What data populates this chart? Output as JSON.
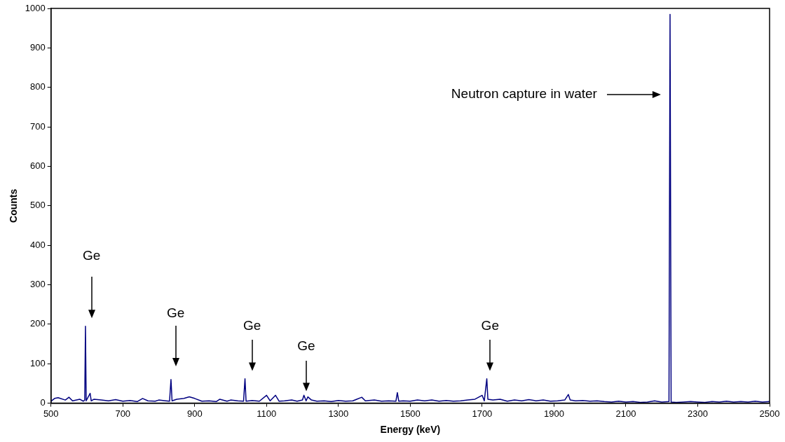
{
  "chart_data": {
    "type": "line",
    "xlabel": "Energy (keV)",
    "ylabel": "Counts",
    "x": [
      500,
      510,
      520,
      540,
      550,
      560,
      580,
      590,
      594,
      596,
      598,
      609,
      612,
      620,
      640,
      660,
      680,
      700,
      720,
      740,
      755,
      770,
      790,
      800,
      820,
      830,
      834,
      837,
      850,
      870,
      885,
      900,
      920,
      940,
      960,
      970,
      990,
      1000,
      1020,
      1036,
      1040,
      1043,
      1060,
      1080,
      1100,
      1110,
      1125,
      1135,
      1150,
      1170,
      1185,
      1200,
      1204,
      1210,
      1215,
      1225,
      1240,
      1260,
      1280,
      1300,
      1320,
      1340,
      1365,
      1375,
      1400,
      1420,
      1440,
      1460,
      1464,
      1468,
      1480,
      1500,
      1520,
      1540,
      1560,
      1580,
      1600,
      1620,
      1640,
      1660,
      1680,
      1700,
      1706,
      1713,
      1716,
      1730,
      1750,
      1770,
      1790,
      1810,
      1830,
      1850,
      1870,
      1890,
      1910,
      1930,
      1940,
      1945,
      1960,
      1980,
      2000,
      2020,
      2040,
      2060,
      2080,
      2100,
      2120,
      2140,
      2160,
      2180,
      2200,
      2220,
      2223,
      2226,
      2240,
      2260,
      2280,
      2300,
      2320,
      2340,
      2360,
      2380,
      2400,
      2420,
      2440,
      2460,
      2480,
      2500
    ],
    "series": [
      {
        "color": "#000080",
        "values": [
          5,
          12,
          14,
          8,
          15,
          6,
          10,
          5,
          8,
          195,
          6,
          25,
          6,
          10,
          8,
          6,
          9,
          5,
          7,
          4,
          12,
          6,
          5,
          8,
          6,
          5,
          60,
          6,
          10,
          12,
          16,
          12,
          5,
          6,
          4,
          10,
          5,
          8,
          6,
          5,
          62,
          5,
          7,
          5,
          20,
          6,
          20,
          5,
          6,
          8,
          5,
          8,
          20,
          6,
          16,
          8,
          5,
          6,
          4,
          7,
          5,
          6,
          15,
          6,
          8,
          5,
          6,
          5,
          27,
          5,
          6,
          5,
          8,
          6,
          8,
          5,
          7,
          5,
          6,
          8,
          10,
          20,
          6,
          62,
          10,
          8,
          10,
          5,
          8,
          6,
          9,
          6,
          8,
          5,
          6,
          8,
          22,
          8,
          6,
          7,
          5,
          6,
          4,
          3,
          5,
          3,
          4,
          2,
          3,
          6,
          3,
          4,
          985,
          3,
          2,
          3,
          4,
          3,
          2,
          4,
          3,
          5,
          3,
          4,
          3,
          5,
          3,
          4
        ]
      }
    ],
    "xlim": [
      500,
      2500
    ],
    "xticks": [
      500,
      700,
      900,
      1100,
      1300,
      1500,
      1700,
      1900,
      2100,
      2300,
      2500
    ],
    "ylim": [
      0,
      1000
    ],
    "yticks": [
      0,
      100,
      200,
      300,
      400,
      500,
      600,
      700,
      800,
      900,
      1000
    ],
    "grid": false,
    "legend": false,
    "marker": "none",
    "line_style": "solid",
    "annotations": [
      "Ge",
      "Ge",
      "Ge",
      "Ge",
      "Ge",
      "Neutron capture in water"
    ]
  }
}
